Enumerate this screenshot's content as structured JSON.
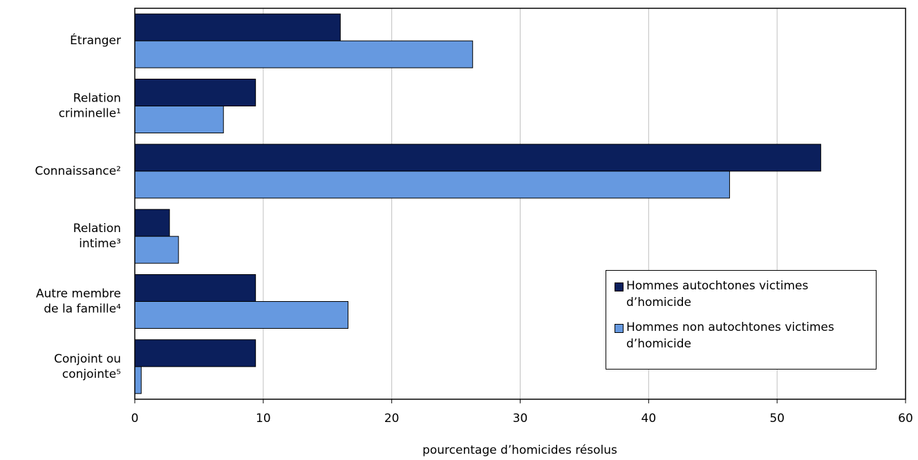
{
  "chart_data": {
    "type": "bar",
    "orientation": "horizontal",
    "x_label": "pourcentage d’homicides résolus",
    "categories": [
      "Étranger",
      "Relation\ncriminelle¹",
      "Connaissance²",
      "Relation\nintime³",
      "Autre membre\nde la famille⁴",
      "Conjoint ou\nconjointe⁵"
    ],
    "series": [
      {
        "name": "Hommes autochtones victimes d’homicide",
        "color": "#0b1f5c",
        "values": [
          16.0,
          9.4,
          53.4,
          2.7,
          9.4,
          9.4
        ]
      },
      {
        "name": "Hommes non autochtones victimes d’homicide",
        "color": "#6699e0",
        "values": [
          26.3,
          6.9,
          46.3,
          3.4,
          16.6,
          0.5
        ]
      }
    ],
    "xlim": [
      0,
      60
    ],
    "xticks": [
      0,
      10,
      20,
      30,
      40,
      50,
      60
    ],
    "grid": true,
    "legend": "lower right"
  }
}
